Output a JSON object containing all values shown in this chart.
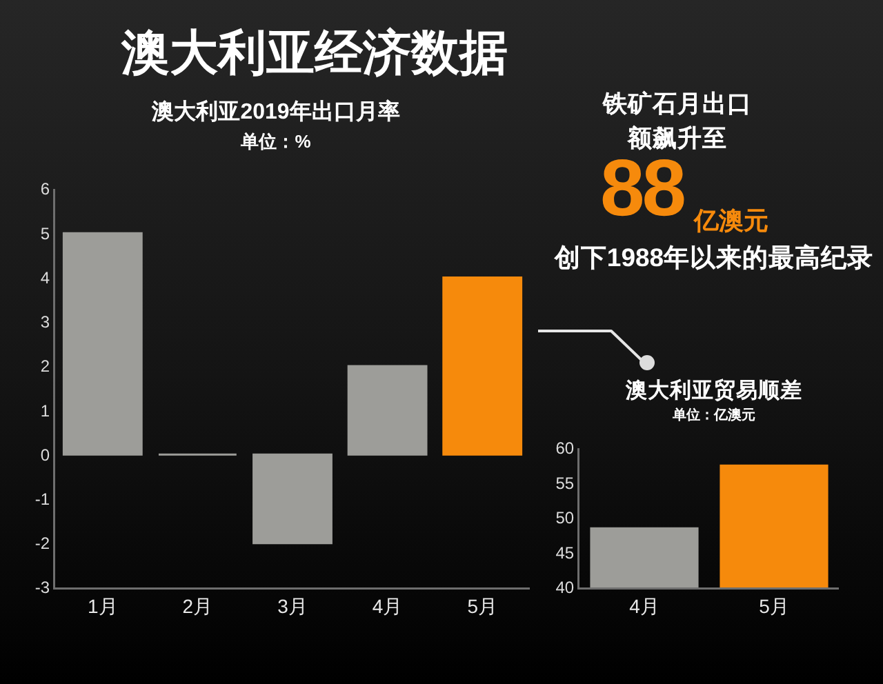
{
  "chart_data": [
    {
      "type": "other",
      "title": "澳大利亚经济数据"
    },
    {
      "type": "bar",
      "title": "澳大利亚2019年出口月率",
      "subtitle": "单位：%",
      "categories": [
        "1月",
        "2月",
        "3月",
        "4月",
        "5月"
      ],
      "values": [
        5,
        0,
        -2,
        2,
        4
      ],
      "colors": [
        "#9d9d99",
        "#9d9d99",
        "#9d9d99",
        "#9d9d99",
        "#f68a0c"
      ],
      "ylim": [
        -3,
        6
      ],
      "yticks": [
        -3,
        -2,
        -1,
        0,
        1,
        2,
        3,
        4,
        5,
        6
      ]
    },
    {
      "type": "other",
      "annotations": [
        "铁矿石月出口额飙升至",
        "88",
        "亿澳元",
        "创下1988年以来的最高纪录"
      ]
    },
    {
      "type": "bar",
      "title": "澳大利亚贸易顺差",
      "subtitle": "单位：亿澳元",
      "categories": [
        "4月",
        "5月"
      ],
      "values": [
        48.5,
        57.5
      ],
      "colors": [
        "#9d9d99",
        "#f68a0c"
      ],
      "ylim": [
        40,
        60
      ],
      "yticks": [
        40,
        45,
        50,
        55,
        60
      ]
    }
  ]
}
